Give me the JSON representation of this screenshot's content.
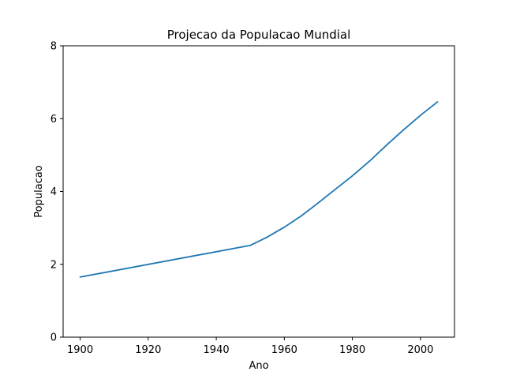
{
  "chart_data": {
    "type": "line",
    "title": "Projecao da Populacao Mundial",
    "xlabel": "Ano",
    "ylabel": "Populacao",
    "xlim": [
      1895,
      2010
    ],
    "ylim": [
      0,
      8
    ],
    "xticks": [
      1900,
      1920,
      1940,
      1960,
      1980,
      2000
    ],
    "yticks": [
      0,
      2,
      4,
      6,
      8
    ],
    "grid": false,
    "series": [
      {
        "color": "#1f77b4",
        "x": [
          1900,
          1950,
          1955,
          1960,
          1965,
          1970,
          1975,
          1980,
          1985,
          1990,
          1995,
          2000,
          2005
        ],
        "y": [
          1.65,
          2.52,
          2.75,
          3.02,
          3.33,
          3.69,
          4.06,
          4.43,
          4.83,
          5.27,
          5.69,
          6.09,
          6.46
        ]
      }
    ]
  }
}
